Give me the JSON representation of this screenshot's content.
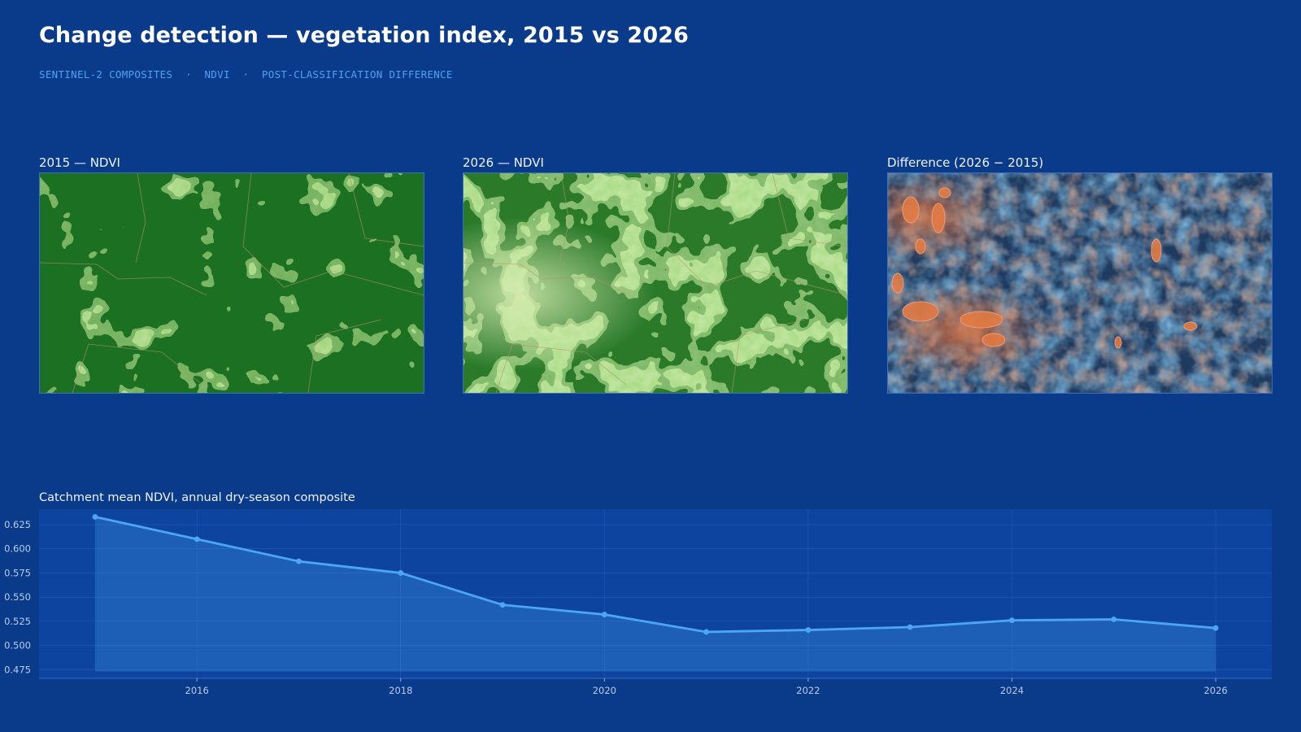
{
  "header": {
    "title": "Change detection — vegetation index, 2015 vs 2026",
    "subtitle_parts": [
      "SENTINEL-2 COMPOSITES",
      "NDVI",
      "POST-CLASSIFICATION DIFFERENCE"
    ],
    "separator": "·"
  },
  "panels": [
    {
      "label": "2015 — NDVI"
    },
    {
      "label": "2026 — NDVI"
    },
    {
      "label": "Difference (2026 − 2015)"
    }
  ],
  "colors": {
    "background": "#0a3a8a",
    "plot_bg": "#0c44a0",
    "line": "#4da6f5",
    "ndvi_low": "#a8dc86",
    "ndvi_high": "#1f6f22",
    "diff_loss": "#e0703a",
    "diff_gain": "#2f6ea8"
  },
  "chart_data": {
    "type": "area",
    "title": "Catchment mean NDVI, annual dry-season composite",
    "xlabel": "",
    "ylabel": "",
    "x": [
      2015,
      2016,
      2017,
      2018,
      2019,
      2020,
      2021,
      2022,
      2023,
      2024,
      2025,
      2026
    ],
    "values": [
      0.633,
      0.61,
      0.587,
      0.575,
      0.542,
      0.532,
      0.514,
      0.516,
      0.519,
      0.526,
      0.527,
      0.518
    ],
    "xlim": [
      2014.45,
      2026.55
    ],
    "ylim": [
      0.466,
      0.641
    ],
    "area_baseline": 0.473,
    "xticks": [
      2016,
      2018,
      2020,
      2022,
      2024,
      2026
    ],
    "yticks": [
      0.475,
      0.5,
      0.525,
      0.55,
      0.575,
      0.6,
      0.625
    ],
    "ytick_labels": [
      "0.475",
      "0.500",
      "0.525",
      "0.550",
      "0.575",
      "0.600",
      "0.625"
    ],
    "grid": true,
    "legend": "none"
  }
}
